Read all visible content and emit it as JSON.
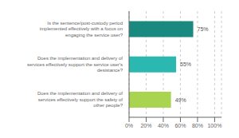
{
  "chart_data": {
    "type": "bar",
    "orientation": "horizontal",
    "categories": [
      "Does the implementation and delivery of\nservices effectively support the safety of\nother people?",
      "Does the implementation and delivery of\nservices effectively support the service user's\ndesistance?",
      "Is the sentence/post-custody period\nimplemented effectively with a focus on\nengaging the service user?"
    ],
    "values": [
      49,
      55,
      75
    ],
    "value_labels": [
      "49%",
      "55%",
      "75%"
    ],
    "colors": [
      "#a8d44f",
      "#2ab8b0",
      "#1a8a80"
    ],
    "xlim": [
      0,
      108
    ],
    "xticks": [
      {
        "value": 0,
        "label": "0%"
      },
      {
        "value": 20,
        "label": "20%"
      },
      {
        "value": 40,
        "label": "40%"
      },
      {
        "value": 60,
        "label": "60%"
      },
      {
        "value": 80,
        "label": "80%"
      },
      {
        "value": 100,
        "label": "100%"
      }
    ],
    "grid": true,
    "data_labels": true
  }
}
